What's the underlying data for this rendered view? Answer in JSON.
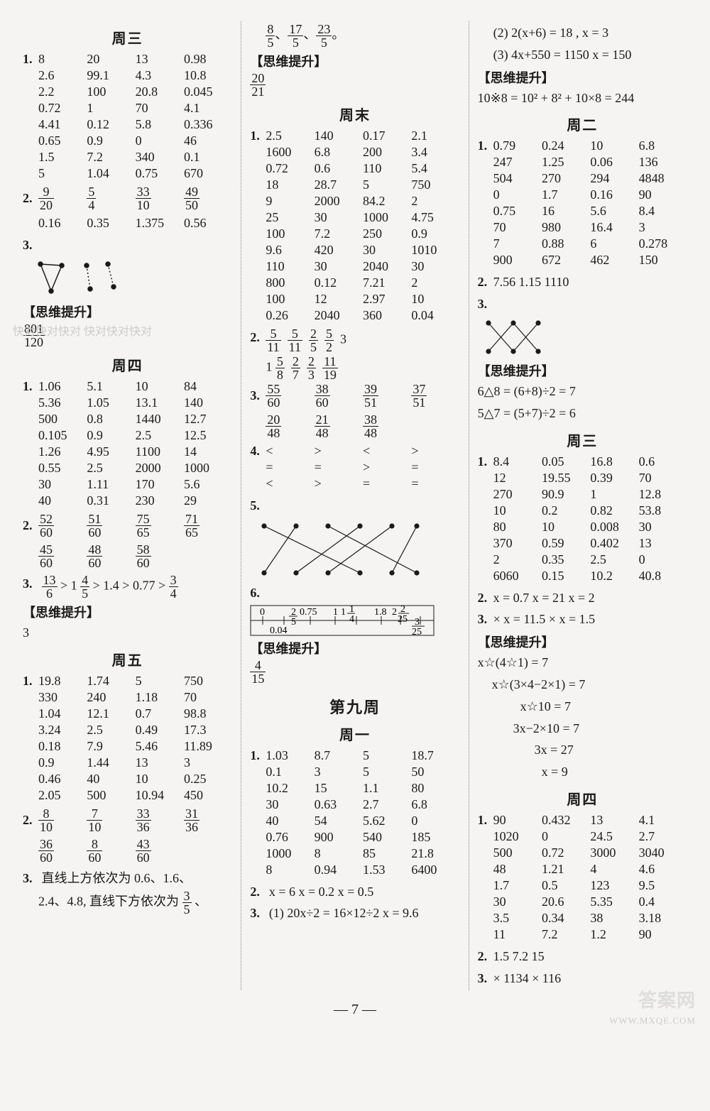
{
  "col1": {
    "wed": {
      "title": "周三",
      "q1": [
        [
          "8",
          "20",
          "13",
          "0.98"
        ],
        [
          "2.6",
          "99.1",
          "4.3",
          "10.8"
        ],
        [
          "2.2",
          "100",
          "20.8",
          "0.045"
        ],
        [
          "0.72",
          "1",
          "70",
          "4.1"
        ],
        [
          "4.41",
          "0.12",
          "5.8",
          "0.336"
        ],
        [
          "0.65",
          "0.9",
          "0",
          "46"
        ],
        [
          "1.5",
          "7.2",
          "340",
          "0.1"
        ],
        [
          "5",
          "1.04",
          "0.75",
          "670"
        ]
      ],
      "q2_fracs": [
        [
          "9",
          "20"
        ],
        [
          "5",
          "4"
        ],
        [
          "33",
          "10"
        ],
        [
          "49",
          "50"
        ]
      ],
      "q2_dec": [
        "0.16",
        "0.35",
        "1.375",
        "0.56"
      ],
      "q3_label": "3.",
      "sw_label": "【思维提升】",
      "sw_ans_n": "801",
      "sw_ans_d": "120"
    },
    "thu": {
      "title": "周四",
      "q1": [
        [
          "1.06",
          "5.1",
          "10",
          "84"
        ],
        [
          "5.36",
          "1.05",
          "13.1",
          "140"
        ],
        [
          "500",
          "0.8",
          "1440",
          "12.7"
        ],
        [
          "0.105",
          "0.9",
          "2.5",
          "12.5"
        ],
        [
          "1.26",
          "4.95",
          "1100",
          "14"
        ],
        [
          "0.55",
          "2.5",
          "2000",
          "1000"
        ],
        [
          "30",
          "1.11",
          "170",
          "5.6"
        ],
        [
          "40",
          "0.31",
          "230",
          "29"
        ]
      ],
      "q2_row1": [
        [
          "52",
          "60"
        ],
        [
          "51",
          "60"
        ],
        [
          "75",
          "65"
        ],
        [
          "71",
          "65"
        ]
      ],
      "q2_row2": [
        [
          "45",
          "60"
        ],
        [
          "48",
          "60"
        ],
        [
          "58",
          "60"
        ]
      ],
      "q3_label": "3.",
      "q3_prefix": " > 1",
      "q3_f1": [
        "13",
        "6"
      ],
      "q3_f2": [
        "4",
        "5"
      ],
      "q3_mid": " > 1.4 > 0.77 > ",
      "q3_f3": [
        "3",
        "4"
      ],
      "sw_label": "【思维提升】",
      "sw_ans": "3"
    },
    "fri": {
      "title": "周五",
      "q1": [
        [
          "19.8",
          "1.74",
          "5",
          "750"
        ],
        [
          "330",
          "240",
          "1.18",
          "70"
        ],
        [
          "1.04",
          "12.1",
          "0.7",
          "98.8"
        ],
        [
          "3.24",
          "2.5",
          "0.49",
          "17.3"
        ],
        [
          "0.18",
          "7.9",
          "5.46",
          "11.89"
        ],
        [
          "0.9",
          "1.44",
          "13",
          "3"
        ],
        [
          "0.46",
          "40",
          "10",
          "0.25"
        ],
        [
          "2.05",
          "500",
          "10.94",
          "450"
        ]
      ],
      "q2_row1": [
        [
          "8",
          "10"
        ],
        [
          "7",
          "10"
        ],
        [
          "33",
          "36"
        ],
        [
          "31",
          "36"
        ]
      ],
      "q2_row2": [
        [
          "36",
          "60"
        ],
        [
          "8",
          "60"
        ],
        [
          "43",
          "60"
        ]
      ],
      "q3_label": "3.",
      "q3_text_a": "直线上方依次为 0.6、1.6、",
      "q3_text_b": "2.4、4.8, 直线下方依次为",
      "q3_frac": [
        "3",
        "5"
      ],
      "q3_suffix": "、"
    }
  },
  "col2": {
    "top_fracs": [
      [
        "8",
        "5"
      ],
      [
        "17",
        "5"
      ],
      [
        "23",
        "5"
      ]
    ],
    "top_suffix": "。",
    "sw1_label": "【思维提升】",
    "sw1_ans": [
      "20",
      "21"
    ],
    "weekend": {
      "title": "周末",
      "q1": [
        [
          "2.5",
          "140",
          "0.17",
          "2.1"
        ],
        [
          "1600",
          "6.8",
          "200",
          "3.4"
        ],
        [
          "0.72",
          "0.6",
          "110",
          "5.4"
        ],
        [
          "18",
          "28.7",
          "5",
          "750"
        ],
        [
          "9",
          "2000",
          "84.2",
          "2"
        ],
        [
          "25",
          "30",
          "1000",
          "4.75"
        ],
        [
          "100",
          "7.2",
          "250",
          "0.9"
        ],
        [
          "9.6",
          "420",
          "30",
          "1010"
        ],
        [
          "110",
          "30",
          "2040",
          "30"
        ],
        [
          "800",
          "0.12",
          "7.21",
          "2"
        ],
        [
          "100",
          "12",
          "2.97",
          "10"
        ],
        [
          "0.26",
          "2040",
          "360",
          "0.04"
        ]
      ],
      "q2_fracs": [
        [
          "5",
          "11"
        ],
        [
          "5",
          "11"
        ],
        [
          "2",
          "5"
        ],
        [
          "5",
          "2"
        ]
      ],
      "q2_tail": "3",
      "q2_row2_pre": "1",
      "q2_row2_fracs": [
        [
          "5",
          "8"
        ],
        [
          "2",
          "7"
        ],
        [
          "2",
          "3"
        ],
        [
          "11",
          "19"
        ]
      ],
      "q3_row1": [
        [
          "55",
          "60"
        ],
        [
          "38",
          "60"
        ],
        [
          "39",
          "51"
        ],
        [
          "37",
          "51"
        ]
      ],
      "q3_row2": [
        [
          "20",
          "48"
        ],
        [
          "21",
          "48"
        ],
        [
          "38",
          "48"
        ]
      ],
      "q4_rows": [
        [
          "<",
          ">",
          "<",
          ">"
        ],
        [
          "=",
          "=",
          ">",
          "="
        ],
        [
          "<",
          ">",
          "=",
          "="
        ]
      ],
      "q5_label": "5.",
      "q6_label": "6.",
      "ruler_labels": [
        "0",
        "0.04",
        "2/5",
        "0.75",
        "1",
        "1 1/4",
        "1.8",
        "2 2/25",
        "3/25"
      ],
      "sw2_label": "【思维提升】",
      "sw2_ans": [
        "4",
        "15"
      ]
    },
    "week9": {
      "title": "第九周",
      "mon": {
        "title": "周一",
        "q1": [
          [
            "1.03",
            "8.7",
            "5",
            "18.7"
          ],
          [
            "0.1",
            "3",
            "5",
            "50"
          ],
          [
            "10.2",
            "15",
            "1.1",
            "80"
          ],
          [
            "30",
            "0.63",
            "2.7",
            "6.8"
          ],
          [
            "40",
            "54",
            "5.62",
            "0"
          ],
          [
            "0.76",
            "900",
            "540",
            "185"
          ],
          [
            "1000",
            "8",
            "85",
            "21.8"
          ],
          [
            "8",
            "0.94",
            "1.53",
            "6400"
          ]
        ],
        "q2_label": "2.",
        "q2_text": "x = 6    x = 0.2    x = 0.5",
        "q3_label": "3.",
        "q3_text": "(1) 20x÷2 = 16×12÷2    x = 9.6"
      }
    }
  },
  "col3": {
    "top_lines": [
      "(2) 2(x+6) = 18 ,  x = 3",
      "(3) 4x+550 = 1150    x = 150"
    ],
    "sw1_label": "【思维提升】",
    "sw1_text": "10※8 = 10² + 8² + 10×8 = 244",
    "tue": {
      "title": "周二",
      "q1": [
        [
          "0.79",
          "0.24",
          "10",
          "6.8"
        ],
        [
          "247",
          "1.25",
          "0.06",
          "136"
        ],
        [
          "504",
          "270",
          "294",
          "4848"
        ],
        [
          "0",
          "1.7",
          "0.16",
          "90"
        ],
        [
          "0.75",
          "16",
          "5.6",
          "8.4"
        ],
        [
          "70",
          "980",
          "16.4",
          "3"
        ],
        [
          "7",
          "0.88",
          "6",
          "0.278"
        ],
        [
          "900",
          "672",
          "462",
          "150"
        ]
      ],
      "q2_label": "2.",
      "q2_text": "7.56    1.15    1110",
      "q3_label": "3.",
      "sw_label": "【思维提升】",
      "sw_l1": "6△8 = (6+8)÷2 = 7",
      "sw_l2": "5△7 = (5+7)÷2 = 6"
    },
    "wed": {
      "title": "周三",
      "q1": [
        [
          "8.4",
          "0.05",
          "16.8",
          "0.6"
        ],
        [
          "12",
          "19.55",
          "0.39",
          "70"
        ],
        [
          "270",
          "90.9",
          "1",
          "12.8"
        ],
        [
          "10",
          "0.2",
          "0.82",
          "53.8"
        ],
        [
          "80",
          "10",
          "0.008",
          "30"
        ],
        [
          "370",
          "0.59",
          "0.402",
          "13"
        ],
        [
          "2",
          "0.35",
          "2.5",
          "0"
        ],
        [
          "6060",
          "0.15",
          "10.2",
          "40.8"
        ]
      ],
      "q2_label": "2.",
      "q2_text": "x = 0.7    x = 21    x = 2",
      "q3_label": "3.",
      "q3_text": "×    x = 11.5    ×    x = 1.5",
      "sw_label": "【思维提升】",
      "sw_lines": [
        "x☆(4☆1) = 7",
        "x☆(3×4−2×1) = 7",
        "x☆10 = 7",
        "3x−2×10 = 7",
        "3x = 27",
        "x = 9"
      ]
    },
    "thu": {
      "title": "周四",
      "q1": [
        [
          "90",
          "0.432",
          "13",
          "4.1"
        ],
        [
          "1020",
          "0",
          "24.5",
          "2.7"
        ],
        [
          "500",
          "0.72",
          "3000",
          "3040"
        ],
        [
          "48",
          "1.21",
          "4",
          "4.6"
        ],
        [
          "1.7",
          "0.5",
          "123",
          "9.5"
        ],
        [
          "30",
          "20.6",
          "5.35",
          "0.4"
        ],
        [
          "3.5",
          "0.34",
          "38",
          "3.18"
        ],
        [
          "11",
          "7.2",
          "1.2",
          "90"
        ]
      ],
      "q2_label": "2.",
      "q2_text": "1.5    7.2    15",
      "q3_label": "3.",
      "q3_text": "×    1134    ×    116"
    }
  },
  "footer": "— 7 —",
  "wm": {
    "brand": "答案网",
    "url": "WWW.MXQE.COM",
    "kd": "快对快对快对\n快对快对快对"
  }
}
